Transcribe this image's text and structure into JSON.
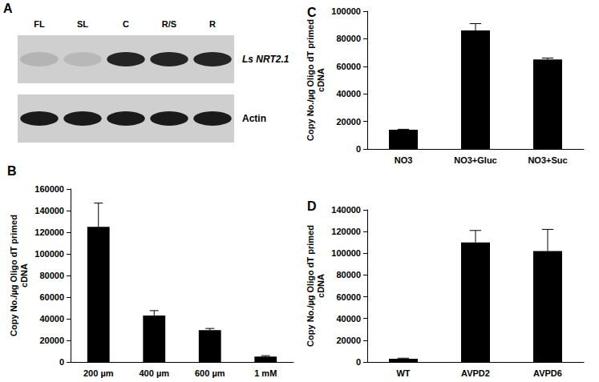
{
  "gel": {
    "panel": "A",
    "lanes": [
      "FL",
      "SL",
      "C",
      "R/S",
      "R"
    ],
    "rows": [
      {
        "label": "Ls NRT2.1",
        "italic": true,
        "band_intensity": [
          0.15,
          0.12,
          0.95,
          0.95,
          0.95
        ]
      },
      {
        "label": "Actin",
        "italic": false,
        "band_intensity": [
          1,
          1,
          1,
          1,
          1
        ]
      }
    ]
  },
  "chart_data": [
    {
      "panel": "B",
      "type": "bar",
      "ylabel": "Copy No./µg Oligo dT primed cDNA",
      "categories": [
        "200 µm",
        "400 µm",
        "600 µm",
        "1 mM"
      ],
      "values": [
        125000,
        43000,
        29500,
        5000
      ],
      "errors": [
        22000,
        4500,
        1500,
        800
      ],
      "color": "#000000",
      "ylim": [
        0,
        160000
      ],
      "yticks": [
        0,
        20000,
        40000,
        60000,
        80000,
        100000,
        120000,
        140000,
        160000
      ],
      "grid": false
    },
    {
      "panel": "C",
      "type": "bar",
      "ylabel": "Copy No./µg Oligo dT primed cDNA",
      "categories": [
        "NO3",
        "NO3+Gluc",
        "NO3+Suc"
      ],
      "values": [
        14000,
        86000,
        65000
      ],
      "errors": [
        300,
        5000,
        1000
      ],
      "color": "#000000",
      "ylim": [
        0,
        100000
      ],
      "yticks": [
        0,
        20000,
        40000,
        60000,
        80000,
        100000
      ],
      "grid": false
    },
    {
      "panel": "D",
      "type": "bar",
      "ylabel": "Copy No./µg Oligo dT primed cDNA",
      "categories": [
        "WT",
        "AVPD2",
        "AVPD6"
      ],
      "values": [
        3000,
        110000,
        102000
      ],
      "errors": [
        500,
        11000,
        20000
      ],
      "color": "#000000",
      "ylim": [
        0,
        140000
      ],
      "yticks": [
        0,
        20000,
        40000,
        60000,
        80000,
        100000,
        120000,
        140000
      ],
      "grid": false
    }
  ]
}
